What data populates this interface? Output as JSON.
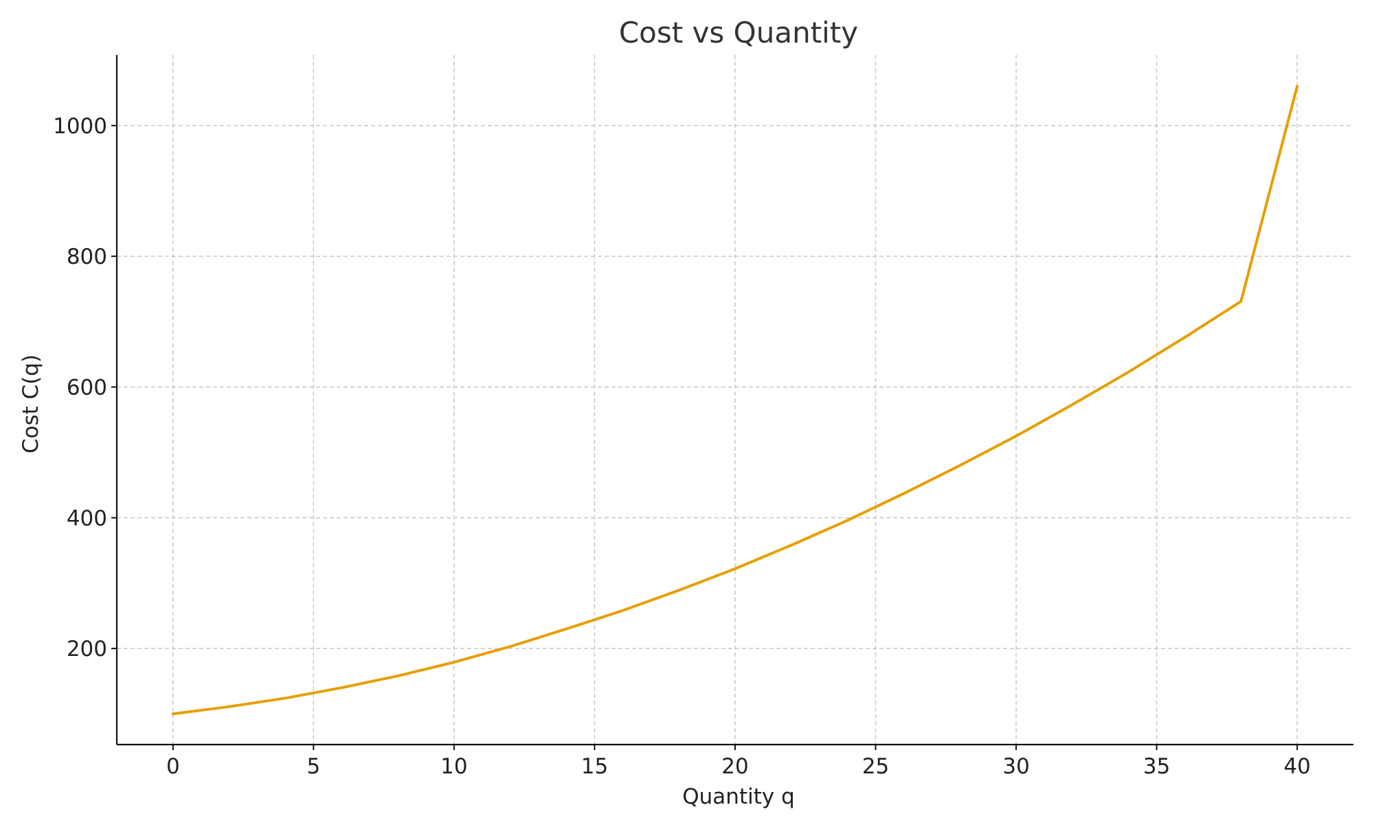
{
  "chart_data": {
    "type": "line",
    "title": "Cost vs Quantity",
    "xlabel": "Quantity q",
    "ylabel": "Cost C(q)",
    "xlim": [
      -2,
      42
    ],
    "ylim": [
      53,
      1108
    ],
    "x_ticks": [
      0,
      5,
      10,
      15,
      20,
      25,
      30,
      35,
      40
    ],
    "y_ticks": [
      200,
      400,
      600,
      800,
      1000
    ],
    "grid": true,
    "legend": "none",
    "series": [
      {
        "color": "#E69F00",
        "x": [
          0,
          2,
          4,
          6,
          8,
          10,
          12,
          14,
          16,
          18,
          20,
          22,
          24,
          26,
          28,
          30,
          32,
          34,
          36,
          38,
          40
        ],
        "values": [
          100,
          111,
          124,
          140,
          158,
          179,
          203,
          230,
          258,
          289,
          322,
          358,
          396,
          437,
          480,
          525,
          573,
          623,
          676,
          731,
          1060
        ]
      }
    ]
  }
}
